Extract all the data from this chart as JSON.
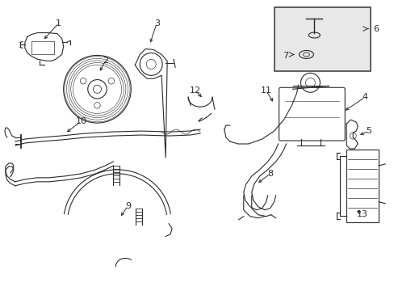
{
  "background_color": "#ffffff",
  "line_color": "#2a2a2a",
  "fig_width": 4.89,
  "fig_height": 3.6,
  "dpi": 100,
  "label_fontsize": 8,
  "arrow_lw": 0.7,
  "part_lw": 0.8
}
